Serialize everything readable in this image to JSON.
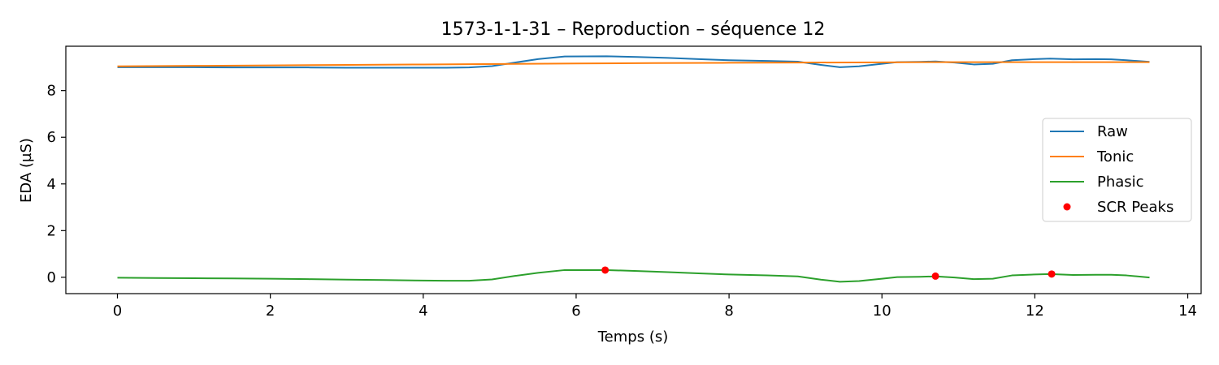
{
  "chart_data": {
    "type": "line",
    "title": "1573-1-1-31 – Reproduction – séquence 12",
    "xlabel": "Temps (s)",
    "ylabel": "EDA (µS)",
    "xlim": [
      -0.675,
      14.175
    ],
    "ylim": [
      -0.7,
      9.9
    ],
    "xticks": [
      0,
      2,
      4,
      6,
      8,
      10,
      12,
      14
    ],
    "yticks": [
      0,
      2,
      4,
      6,
      8
    ],
    "xtick_labels": [
      "0",
      "2",
      "4",
      "6",
      "8",
      "10",
      "12",
      "14"
    ],
    "ytick_labels": [
      "0",
      "2",
      "4",
      "6",
      "8"
    ],
    "grid": false,
    "legend_position": "center-right",
    "series": [
      {
        "name": "Raw",
        "color": "#1f77b4",
        "x": [
          0,
          0.5,
          1,
          1.5,
          2,
          2.5,
          3,
          3.5,
          4,
          4.3,
          4.6,
          4.9,
          5.2,
          5.5,
          5.85,
          6.4,
          6.8,
          7.2,
          7.6,
          8,
          8.5,
          8.9,
          9.2,
          9.45,
          9.7,
          10,
          10.2,
          10.5,
          10.7,
          10.95,
          11.2,
          11.45,
          11.7,
          12,
          12.2,
          12.5,
          12.8,
          13,
          13.2,
          13.5
        ],
        "y": [
          9.0,
          9.0,
          9.0,
          8.99,
          8.99,
          8.99,
          8.98,
          8.98,
          8.98,
          8.98,
          8.99,
          9.05,
          9.2,
          9.35,
          9.46,
          9.47,
          9.44,
          9.4,
          9.35,
          9.3,
          9.27,
          9.24,
          9.1,
          9.0,
          9.04,
          9.15,
          9.22,
          9.23,
          9.25,
          9.2,
          9.12,
          9.15,
          9.3,
          9.35,
          9.37,
          9.34,
          9.35,
          9.34,
          9.3,
          9.23
        ]
      },
      {
        "name": "Tonic",
        "color": "#ff7f0e",
        "x": [
          0,
          1,
          2,
          3,
          4,
          5,
          6,
          7,
          8,
          9,
          10,
          11,
          12,
          13,
          13.5
        ],
        "y": [
          9.04,
          9.06,
          9.08,
          9.1,
          9.12,
          9.14,
          9.16,
          9.18,
          9.19,
          9.2,
          9.21,
          9.22,
          9.22,
          9.22,
          9.22
        ]
      },
      {
        "name": "Phasic",
        "color": "#2ca02c",
        "x": [
          0,
          0.5,
          1,
          1.5,
          2,
          2.5,
          3,
          3.5,
          4,
          4.3,
          4.6,
          4.9,
          5.2,
          5.5,
          5.85,
          6.4,
          6.8,
          7.2,
          7.6,
          8,
          8.5,
          8.9,
          9.2,
          9.45,
          9.7,
          10,
          10.2,
          10.5,
          10.7,
          10.95,
          11.2,
          11.45,
          11.7,
          12,
          12.2,
          12.5,
          12.8,
          13,
          13.2,
          13.5
        ],
        "y": [
          -0.02,
          -0.03,
          -0.04,
          -0.05,
          -0.06,
          -0.08,
          -0.1,
          -0.12,
          -0.14,
          -0.15,
          -0.15,
          -0.09,
          0.06,
          0.19,
          0.31,
          0.31,
          0.27,
          0.22,
          0.17,
          0.12,
          0.08,
          0.04,
          -0.1,
          -0.19,
          -0.16,
          -0.06,
          0.01,
          0.02,
          0.04,
          -0.01,
          -0.08,
          -0.06,
          0.08,
          0.12,
          0.14,
          0.1,
          0.11,
          0.11,
          0.08,
          -0.01
        ]
      }
    ],
    "scatter": {
      "name": "SCR Peaks",
      "color": "#ff0000",
      "x": [
        6.38,
        10.7,
        12.22
      ],
      "y": [
        0.31,
        0.05,
        0.14
      ]
    }
  }
}
